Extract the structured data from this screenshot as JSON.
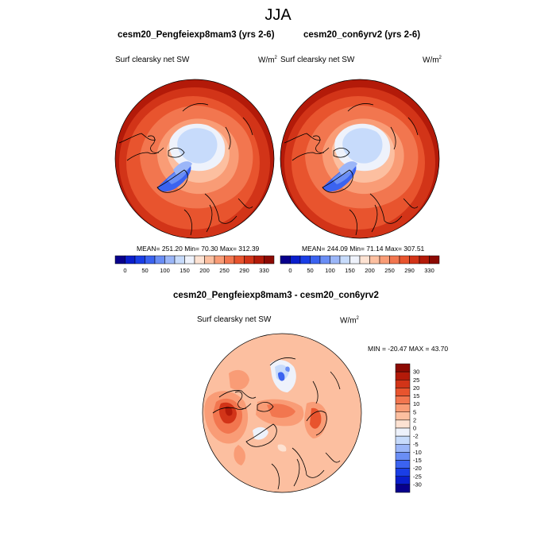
{
  "title": "JJA",
  "panels": [
    {
      "title": "cesm20_Pengfeiexp8mam3 (yrs 2-6)",
      "var_label": "Surf clearsky net SW",
      "units_base": "W/m",
      "units_exp": "2",
      "stats": "MEAN= 251.20  Min=  70.30  Max= 312.39"
    },
    {
      "title": "cesm20_con6yrv2 (yrs 2-6)",
      "var_label": "Surf clearsky net SW",
      "units_base": "W/m",
      "units_exp": "2",
      "stats": "MEAN= 244.09  Min=  71.14  Max= 307.51"
    },
    {
      "title": "cesm20_Pengfeiexp8mam3 - cesm20_con6yrv2",
      "var_label": "Surf clearsky net SW",
      "units_base": "W/m",
      "units_exp": "2",
      "stats": "MIN = -20.47 MAX =  43.70"
    }
  ],
  "chart_data": [
    {
      "type": "heatmap",
      "projection": "polar stereographic (north pole)",
      "title": "cesm20_Pengfeiexp8mam3 (yrs 2-6)",
      "variable": "Surf clearsky net SW",
      "units": "W/m2",
      "mean": 251.2,
      "min": 70.3,
      "max": 312.39,
      "colorbar": {
        "orientation": "horizontal",
        "tick_labels": [
          "0",
          "50",
          "100",
          "150",
          "200",
          "250",
          "290",
          "330"
        ],
        "colors": [
          "#08008c",
          "#0a1ecc",
          "#1a3ee6",
          "#3b63f0",
          "#6a8ef5",
          "#9bb6f8",
          "#c7dbfb",
          "#eef2fb",
          "#fde2d2",
          "#fcbfa0",
          "#f99c76",
          "#f2764f",
          "#e8542e",
          "#d23418",
          "#b31a09",
          "#8c0a03"
        ]
      }
    },
    {
      "type": "heatmap",
      "projection": "polar stereographic (north pole)",
      "title": "cesm20_con6yrv2 (yrs 2-6)",
      "variable": "Surf clearsky net SW",
      "units": "W/m2",
      "mean": 244.09,
      "min": 71.14,
      "max": 307.51,
      "colorbar": {
        "orientation": "horizontal",
        "tick_labels": [
          "0",
          "50",
          "100",
          "150",
          "200",
          "250",
          "290",
          "330"
        ],
        "colors": [
          "#08008c",
          "#0a1ecc",
          "#1a3ee6",
          "#3b63f0",
          "#6a8ef5",
          "#9bb6f8",
          "#c7dbfb",
          "#eef2fb",
          "#fde2d2",
          "#fcbfa0",
          "#f99c76",
          "#f2764f",
          "#e8542e",
          "#d23418",
          "#b31a09",
          "#8c0a03"
        ]
      }
    },
    {
      "type": "heatmap",
      "projection": "polar stereographic (north pole)",
      "title": "cesm20_Pengfeiexp8mam3 - cesm20_con6yrv2",
      "variable": "Surf clearsky net SW",
      "units": "W/m2",
      "min": -20.47,
      "max": 43.7,
      "colorbar": {
        "orientation": "vertical",
        "tick_labels": [
          "30",
          "25",
          "20",
          "15",
          "10",
          "5",
          "2",
          "0",
          "-2",
          "-5",
          "-10",
          "-15",
          "-20",
          "-25",
          "-30"
        ],
        "colors": [
          "#8c0a03",
          "#b31a09",
          "#d23418",
          "#e8542e",
          "#f2764f",
          "#f99c76",
          "#fcbfa0",
          "#fde2d2",
          "#eef2fb",
          "#c7dbfb",
          "#9bb6f8",
          "#6a8ef5",
          "#3b63f0",
          "#1a3ee6",
          "#0a1ecc",
          "#08008c"
        ]
      }
    }
  ]
}
